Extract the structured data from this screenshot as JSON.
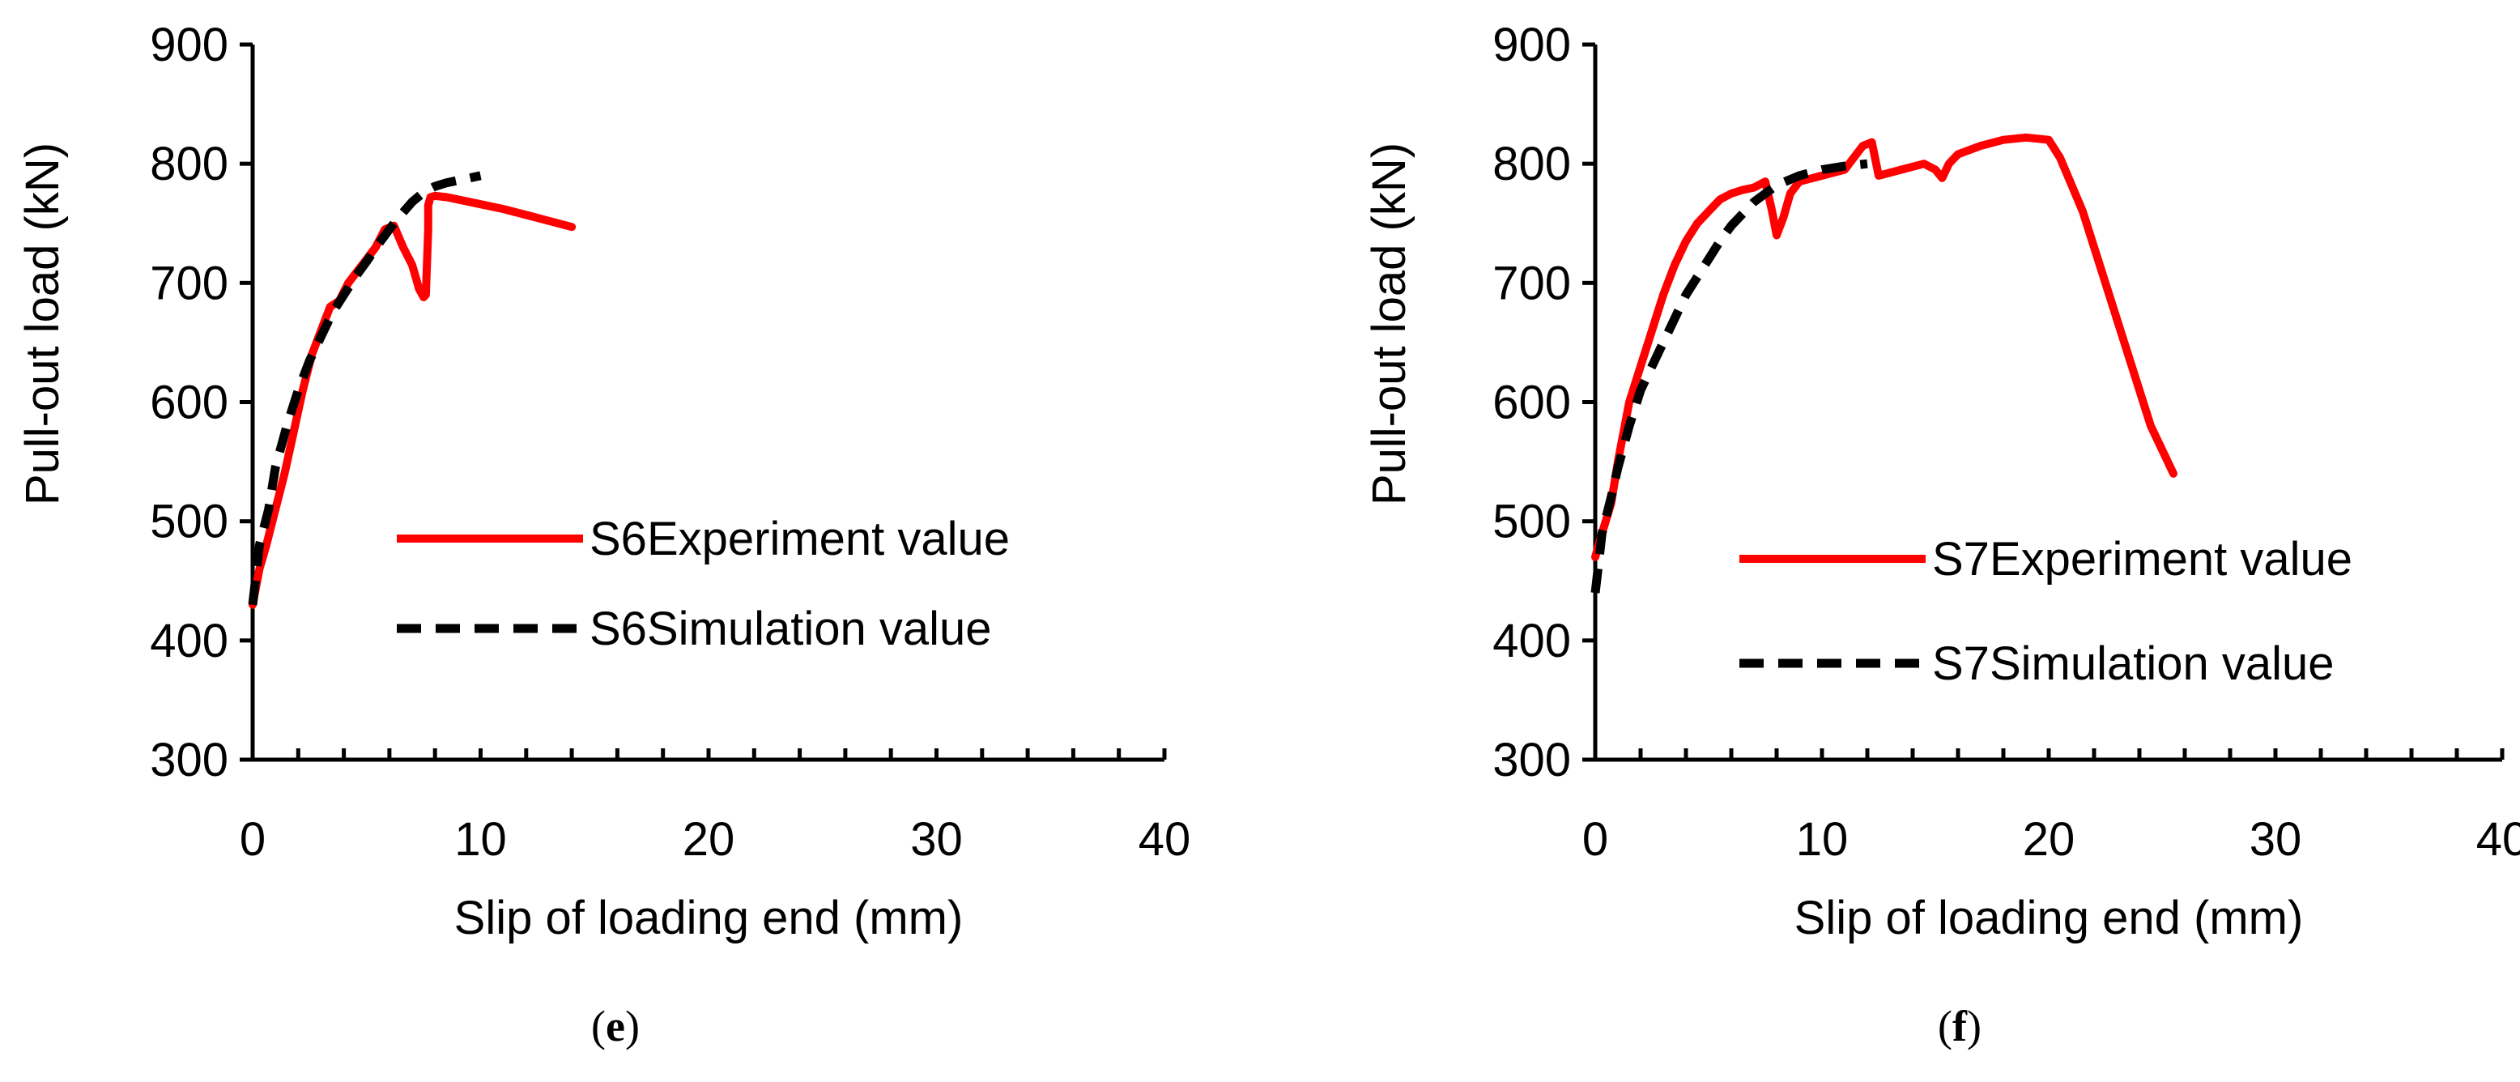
{
  "chart_data": [
    {
      "type": "line",
      "panel_label": "e",
      "xlabel": "Slip of loading end (mm)",
      "ylabel": "Pull-out load (kN)",
      "xlim": [
        0,
        40
      ],
      "ylim": [
        300,
        900
      ],
      "xticks": [
        0,
        10,
        20,
        30,
        40
      ],
      "yticks": [
        300,
        400,
        500,
        600,
        700,
        800,
        900
      ],
      "grid": false,
      "legend_position": "middle",
      "series": [
        {
          "name": "S6Experiment value",
          "color": "#ff0000",
          "style": "solid",
          "x": [
            0.0,
            0.3,
            0.6,
            1.0,
            1.4,
            1.8,
            2.2,
            2.6,
            3.0,
            3.4,
            3.8,
            4.2,
            4.6,
            5.0,
            5.4,
            5.8,
            6.2,
            6.6,
            7.0,
            7.3,
            7.5,
            7.6,
            7.7,
            7.7,
            7.8,
            8.0,
            8.5,
            9.0,
            10.0,
            11.0,
            12.0,
            13.0,
            14.0
          ],
          "y": [
            430,
            460,
            480,
            510,
            540,
            575,
            610,
            640,
            660,
            680,
            685,
            700,
            710,
            720,
            730,
            745,
            748,
            730,
            715,
            695,
            688,
            690,
            745,
            765,
            772,
            773,
            772,
            770,
            766,
            762,
            757,
            752,
            747
          ]
        },
        {
          "name": "S6Simulation value",
          "color": "#000000",
          "style": "dashed",
          "x": [
            0.0,
            0.3,
            0.7,
            1.0,
            1.5,
            2.0,
            2.5,
            3.0,
            3.5,
            4.0,
            4.5,
            5.0,
            5.5,
            6.0,
            6.5,
            7.0,
            7.5,
            8.0,
            8.5,
            9.0,
            10.0
          ],
          "y": [
            430,
            480,
            510,
            545,
            580,
            610,
            635,
            655,
            675,
            690,
            705,
            718,
            732,
            745,
            757,
            768,
            776,
            781,
            784,
            786,
            790
          ]
        }
      ]
    },
    {
      "type": "line",
      "panel_label": "f",
      "xlabel": "Slip of loading end (mm)",
      "ylabel": "Pull-out load (kN)",
      "xlim": [
        0,
        40
      ],
      "ylim": [
        300,
        900
      ],
      "xticks": [
        0,
        10,
        20,
        30,
        40
      ],
      "yticks": [
        300,
        400,
        500,
        600,
        700,
        800,
        900
      ],
      "grid": false,
      "legend_position": "middle-right",
      "series": [
        {
          "name": "S7Experiment value",
          "color": "#ff0000",
          "style": "solid",
          "x": [
            0.0,
            0.3,
            0.7,
            1.0,
            1.5,
            2.0,
            2.5,
            3.0,
            3.5,
            4.0,
            4.5,
            5.0,
            5.5,
            6.0,
            6.5,
            7.0,
            7.5,
            7.8,
            8.0,
            8.3,
            8.6,
            9.0,
            10.0,
            11.0,
            11.8,
            12.2,
            12.5,
            13.5,
            14.5,
            15.0,
            15.3,
            15.6,
            16.0,
            17.0,
            18.0,
            19.0,
            20.0,
            20.5,
            21.5,
            22.5,
            23.5,
            24.5,
            25.5
          ],
          "y": [
            470,
            490,
            515,
            550,
            600,
            630,
            660,
            690,
            715,
            735,
            750,
            760,
            770,
            775,
            778,
            780,
            785,
            760,
            740,
            755,
            775,
            785,
            790,
            795,
            815,
            818,
            790,
            795,
            800,
            795,
            788,
            800,
            808,
            815,
            820,
            822,
            820,
            805,
            760,
            700,
            640,
            580,
            540
          ]
        },
        {
          "name": "S7Simulation value",
          "color": "#000000",
          "style": "dashed",
          "x": [
            0.0,
            0.3,
            0.7,
            1.0,
            1.5,
            2.0,
            2.5,
            3.0,
            3.5,
            4.0,
            4.5,
            5.0,
            5.5,
            6.0,
            6.5,
            7.0,
            7.5,
            8.0,
            9.0,
            10.0,
            11.0,
            12.0
          ],
          "y": [
            440,
            490,
            520,
            545,
            580,
            610,
            630,
            650,
            670,
            690,
            705,
            720,
            735,
            748,
            758,
            768,
            775,
            782,
            790,
            795,
            798,
            800
          ]
        }
      ]
    }
  ]
}
